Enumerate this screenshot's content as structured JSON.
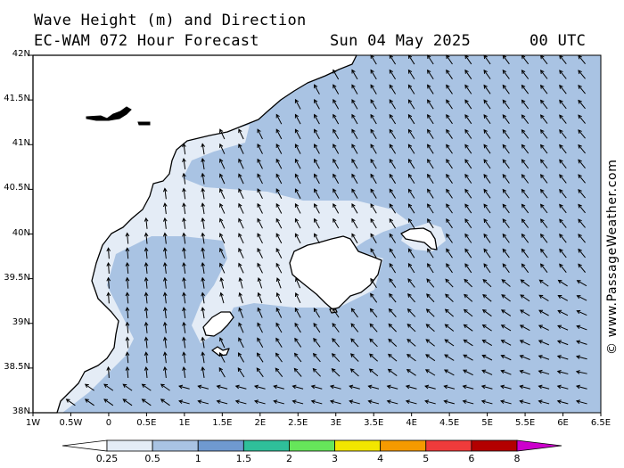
{
  "title": {
    "line1": "Wave Height (m) and Direction",
    "line2": "EC-WAM 072 Hour Forecast",
    "date": "Sun 04 May 2025",
    "time": "00 UTC"
  },
  "watermark": "© www.PassageWeather.com",
  "axes": {
    "lat_labels": [
      "42N",
      "41.5N",
      "41N",
      "40.5N",
      "40N",
      "39.5N",
      "39N",
      "38.5N",
      "38N"
    ],
    "lon_labels": [
      "1W",
      "0.5W",
      "0",
      "0.5E",
      "1E",
      "1.5E",
      "2E",
      "2.5E",
      "3E",
      "3.5E",
      "4E",
      "4.5E",
      "5E",
      "5.5E",
      "6E",
      "6.5E"
    ],
    "lat_range": [
      38,
      42
    ],
    "lon_range": [
      -1,
      6.5
    ]
  },
  "legend": {
    "labels": [
      "0.25",
      "0.5",
      "1",
      "1.5",
      "2",
      "3",
      "4",
      "5",
      "6",
      "8"
    ],
    "colors": [
      "#ffffff",
      "#e4ecf6",
      "#a9c3e3",
      "#6f99d0",
      "#2fbf9a",
      "#66e65a",
      "#f2e600",
      "#f59a00",
      "#ef3b3b",
      "#b30000",
      "#cc00cc"
    ]
  },
  "colors": {
    "land": "#ffffff",
    "sea_low": "#e4ecf6",
    "sea_mid": "#a9c3e3",
    "coast": "#000000"
  }
}
